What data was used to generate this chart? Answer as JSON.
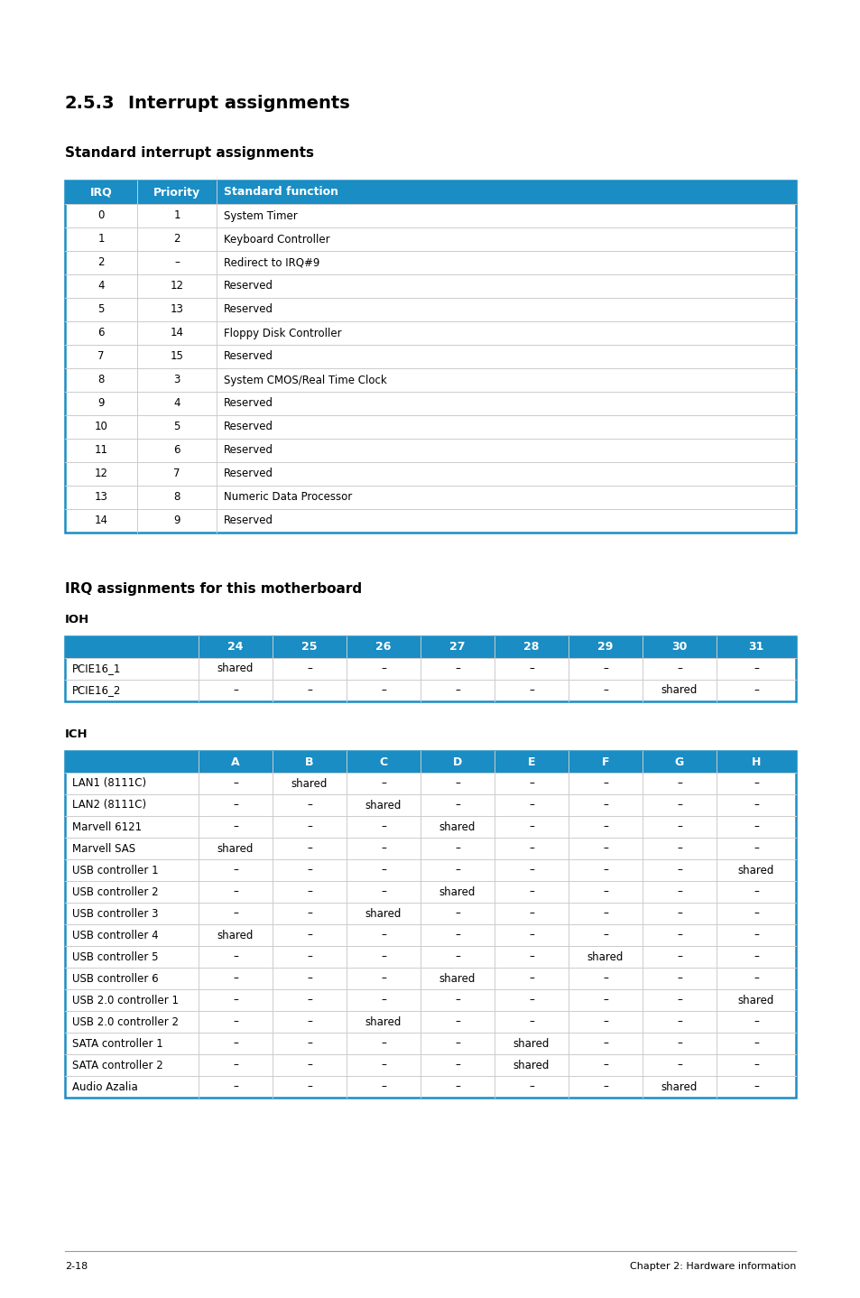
{
  "page_bg": "#ffffff",
  "header_blue": "#1a8dc4",
  "header_text_color": "#ffffff",
  "table_border_blue": "#1a8dc4",
  "text_color": "#000000",
  "section_title_num": "2.5.3",
  "section_title_text": "Interrupt assignments",
  "sub_title1": "Standard interrupt assignments",
  "sub_title2": "IRQ assignments for this motherboard",
  "ioh_label": "IOH",
  "ich_label": "ICH",
  "footer_left": "2-18",
  "footer_right": "Chapter 2: Hardware information",
  "std_headers": [
    "IRQ",
    "Priority",
    "Standard function"
  ],
  "std_rows": [
    [
      "0",
      "1",
      "System Timer"
    ],
    [
      "1",
      "2",
      "Keyboard Controller"
    ],
    [
      "2",
      "–",
      "Redirect to IRQ#9"
    ],
    [
      "4",
      "12",
      "Reserved"
    ],
    [
      "5",
      "13",
      "Reserved"
    ],
    [
      "6",
      "14",
      "Floppy Disk Controller"
    ],
    [
      "7",
      "15",
      "Reserved"
    ],
    [
      "8",
      "3",
      "System CMOS/Real Time Clock"
    ],
    [
      "9",
      "4",
      "Reserved"
    ],
    [
      "10",
      "5",
      "Reserved"
    ],
    [
      "11",
      "6",
      "Reserved"
    ],
    [
      "12",
      "7",
      "Reserved"
    ],
    [
      "13",
      "8",
      "Numeric Data Processor"
    ],
    [
      "14",
      "9",
      "Reserved"
    ]
  ],
  "ioh_col_headers": [
    "",
    "24",
    "25",
    "26",
    "27",
    "28",
    "29",
    "30",
    "31"
  ],
  "ioh_rows": [
    [
      "PCIE16_1",
      "shared",
      "–",
      "–",
      "–",
      "–",
      "–",
      "–",
      "–"
    ],
    [
      "PCIE16_2",
      "–",
      "–",
      "–",
      "–",
      "–",
      "–",
      "shared",
      "–"
    ]
  ],
  "ich_col_headers": [
    "",
    "A",
    "B",
    "C",
    "D",
    "E",
    "F",
    "G",
    "H"
  ],
  "ich_rows": [
    [
      "LAN1 (8111C)",
      "–",
      "shared",
      "–",
      "–",
      "–",
      "–",
      "–",
      "–"
    ],
    [
      "LAN2 (8111C)",
      "–",
      "–",
      "shared",
      "–",
      "–",
      "–",
      "–",
      "–"
    ],
    [
      "Marvell 6121",
      "–",
      "–",
      "–",
      "shared",
      "–",
      "–",
      "–",
      "–"
    ],
    [
      "Marvell SAS",
      "shared",
      "–",
      "–",
      "–",
      "–",
      "–",
      "–",
      "–"
    ],
    [
      "USB controller 1",
      "–",
      "–",
      "–",
      "–",
      "–",
      "–",
      "–",
      "shared"
    ],
    [
      "USB controller 2",
      "–",
      "–",
      "–",
      "shared",
      "–",
      "–",
      "–",
      "–"
    ],
    [
      "USB controller 3",
      "–",
      "–",
      "shared",
      "–",
      "–",
      "–",
      "–",
      "–"
    ],
    [
      "USB controller 4",
      "shared",
      "–",
      "–",
      "–",
      "–",
      "–",
      "–",
      "–"
    ],
    [
      "USB controller 5",
      "–",
      "–",
      "–",
      "–",
      "–",
      "shared",
      "–",
      "–"
    ],
    [
      "USB controller 6",
      "–",
      "–",
      "–",
      "shared",
      "–",
      "–",
      "–",
      "–"
    ],
    [
      "USB 2.0 controller 1",
      "–",
      "–",
      "–",
      "–",
      "–",
      "–",
      "–",
      "shared"
    ],
    [
      "USB 2.0 controller 2",
      "–",
      "–",
      "shared",
      "–",
      "–",
      "–",
      "–",
      "–"
    ],
    [
      "SATA controller 1",
      "–",
      "–",
      "–",
      "–",
      "shared",
      "–",
      "–",
      "–"
    ],
    [
      "SATA controller 2",
      "–",
      "–",
      "–",
      "–",
      "shared",
      "–",
      "–",
      "–"
    ],
    [
      "Audio Azalia",
      "–",
      "–",
      "–",
      "–",
      "–",
      "–",
      "shared",
      "–"
    ]
  ]
}
